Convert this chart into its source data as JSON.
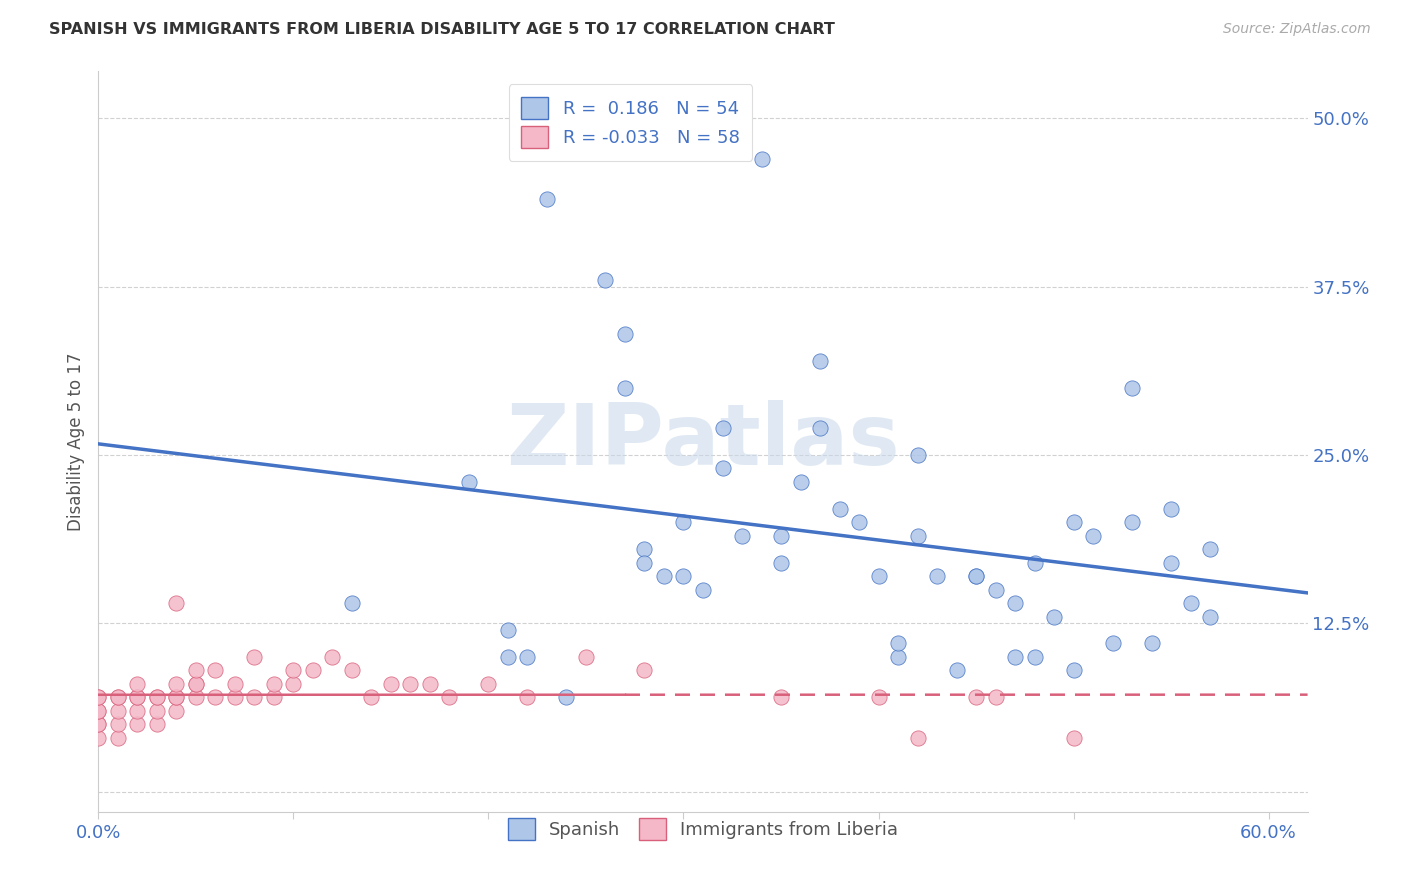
{
  "title": "SPANISH VS IMMIGRANTS FROM LIBERIA DISABILITY AGE 5 TO 17 CORRELATION CHART",
  "source": "Source: ZipAtlas.com",
  "ylabel": "Disability Age 5 to 17",
  "xlim": [
    0.0,
    0.62
  ],
  "ylim": [
    -0.015,
    0.535
  ],
  "xticks": [
    0.0,
    0.1,
    0.2,
    0.3,
    0.4,
    0.5,
    0.6
  ],
  "xticklabels": [
    "0.0%",
    "",
    "",
    "",
    "",
    "",
    "60.0%"
  ],
  "yticks": [
    0.0,
    0.125,
    0.25,
    0.375,
    0.5
  ],
  "yticklabels": [
    "",
    "12.5%",
    "25.0%",
    "37.5%",
    "50.0%"
  ],
  "legend_labels": [
    "Spanish",
    "Immigrants from Liberia"
  ],
  "watermark": "ZIPatlas",
  "spanish_color": "#aec6e8",
  "liberia_color": "#f4b8c8",
  "spanish_line_color": "#4472c4",
  "liberia_line_color": "#d9607a",
  "R_spanish": 0.186,
  "N_spanish": 54,
  "R_liberia": -0.033,
  "N_liberia": 58,
  "legend_text_color": "#4472c4",
  "axis_color": "#4472c4",
  "grid_color": "#cccccc",
  "background_color": "#ffffff",
  "spanish_x": [
    0.13,
    0.19,
    0.21,
    0.22,
    0.23,
    0.26,
    0.27,
    0.27,
    0.28,
    0.28,
    0.29,
    0.3,
    0.3,
    0.31,
    0.32,
    0.33,
    0.34,
    0.35,
    0.35,
    0.36,
    0.37,
    0.38,
    0.39,
    0.4,
    0.41,
    0.41,
    0.42,
    0.43,
    0.44,
    0.45,
    0.45,
    0.46,
    0.47,
    0.47,
    0.48,
    0.48,
    0.49,
    0.5,
    0.5,
    0.51,
    0.52,
    0.53,
    0.54,
    0.55,
    0.56,
    0.57,
    0.57,
    0.55,
    0.53,
    0.42,
    0.37,
    0.32,
    0.24,
    0.21
  ],
  "spanish_y": [
    0.14,
    0.23,
    0.12,
    0.1,
    0.44,
    0.38,
    0.34,
    0.3,
    0.18,
    0.17,
    0.16,
    0.2,
    0.16,
    0.15,
    0.27,
    0.19,
    0.47,
    0.19,
    0.17,
    0.23,
    0.27,
    0.21,
    0.2,
    0.16,
    0.1,
    0.11,
    0.19,
    0.16,
    0.09,
    0.16,
    0.16,
    0.15,
    0.1,
    0.14,
    0.1,
    0.17,
    0.13,
    0.09,
    0.2,
    0.19,
    0.11,
    0.2,
    0.11,
    0.17,
    0.14,
    0.18,
    0.13,
    0.21,
    0.3,
    0.25,
    0.32,
    0.24,
    0.07,
    0.1
  ],
  "liberia_x": [
    0.0,
    0.0,
    0.0,
    0.0,
    0.0,
    0.0,
    0.0,
    0.01,
    0.01,
    0.01,
    0.01,
    0.01,
    0.02,
    0.02,
    0.02,
    0.02,
    0.02,
    0.03,
    0.03,
    0.03,
    0.03,
    0.04,
    0.04,
    0.04,
    0.04,
    0.04,
    0.05,
    0.05,
    0.05,
    0.05,
    0.06,
    0.06,
    0.07,
    0.07,
    0.08,
    0.08,
    0.09,
    0.09,
    0.1,
    0.1,
    0.11,
    0.12,
    0.13,
    0.14,
    0.15,
    0.16,
    0.17,
    0.18,
    0.2,
    0.22,
    0.25,
    0.28,
    0.35,
    0.4,
    0.42,
    0.45,
    0.46,
    0.5
  ],
  "liberia_y": [
    0.04,
    0.05,
    0.05,
    0.06,
    0.06,
    0.07,
    0.07,
    0.04,
    0.05,
    0.06,
    0.07,
    0.07,
    0.05,
    0.06,
    0.07,
    0.07,
    0.08,
    0.05,
    0.06,
    0.07,
    0.07,
    0.06,
    0.07,
    0.07,
    0.08,
    0.14,
    0.07,
    0.08,
    0.08,
    0.09,
    0.07,
    0.09,
    0.07,
    0.08,
    0.07,
    0.1,
    0.07,
    0.08,
    0.08,
    0.09,
    0.09,
    0.1,
    0.09,
    0.07,
    0.08,
    0.08,
    0.08,
    0.07,
    0.08,
    0.07,
    0.1,
    0.09,
    0.07,
    0.07,
    0.04,
    0.07,
    0.07,
    0.04
  ]
}
